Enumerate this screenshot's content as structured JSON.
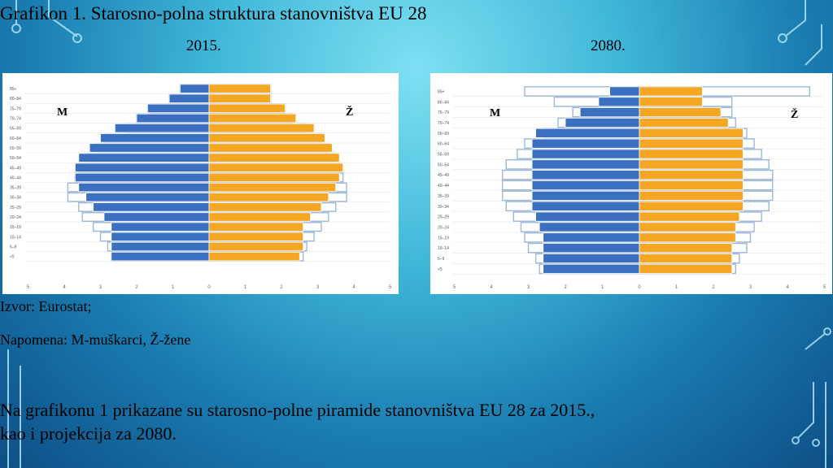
{
  "title": "Grafikon 1. Starosno-polna struktura stanovništva EU 28",
  "year_left": "2015.",
  "year_right": "2080.",
  "source": "Izvor: Eurostat;",
  "note": "Napomena: M-muškarci, Ž-žene",
  "body_line1": "Na grafikonu 1 prikazane su starosno-polne piramide stanovništva EU 28 za 2015.,",
  "body_line2": "kao i projekcija za 2080.",
  "colors": {
    "male": "#3b6fbf",
    "female": "#f5a623",
    "outline": "#9fb8d8"
  },
  "chart_data": [
    {
      "type": "bar",
      "subtype": "population-pyramid",
      "title": "2015.",
      "categories": [
        "<5",
        "5–9",
        "10–14",
        "15–19",
        "20–24",
        "25–29",
        "30–34",
        "35–39",
        "40–44",
        "45–49",
        "50–54",
        "55–59",
        "60–64",
        "65–69",
        "70–74",
        "75–79",
        "80–84",
        "85+"
      ],
      "series": [
        {
          "name": "M",
          "values": [
            2.7,
            2.7,
            2.7,
            2.7,
            2.9,
            3.2,
            3.4,
            3.6,
            3.7,
            3.7,
            3.6,
            3.3,
            3.0,
            2.6,
            2.0,
            1.7,
            1.1,
            0.8
          ]
        },
        {
          "name": "Ž",
          "values": [
            2.5,
            2.6,
            2.6,
            2.6,
            2.8,
            3.1,
            3.3,
            3.5,
            3.6,
            3.7,
            3.6,
            3.4,
            3.2,
            2.9,
            2.4,
            2.1,
            1.7,
            1.7
          ]
        }
      ],
      "outline_series": [
        {
          "name": "M",
          "values": [
            2.7,
            2.8,
            3.0,
            3.2,
            3.5,
            3.6,
            3.9,
            3.9,
            3.7,
            3.6,
            3.4,
            3.1,
            2.9,
            2.3,
            2.0,
            1.6,
            1.1,
            0.8
          ]
        },
        {
          "name": "Ž",
          "values": [
            2.6,
            2.7,
            2.9,
            3.1,
            3.3,
            3.5,
            3.8,
            3.8,
            3.7,
            3.6,
            3.5,
            3.3,
            3.1,
            2.7,
            2.3,
            2.1,
            1.7,
            1.7
          ]
        }
      ],
      "xlim": [
        -5,
        5
      ],
      "tick_labels": [
        "5",
        "4",
        "3",
        "2",
        "1",
        "0",
        "1",
        "2",
        "3",
        "4",
        "5"
      ],
      "male_label": "M",
      "female_label": "Ž"
    },
    {
      "type": "bar",
      "subtype": "population-pyramid",
      "title": "2080.",
      "categories": [
        "<5",
        "5–9",
        "10–14",
        "15–19",
        "20–24",
        "25–29",
        "30–34",
        "35–39",
        "40–44",
        "45–49",
        "50–54",
        "55–59",
        "60–64",
        "65–69",
        "70–74",
        "75–79",
        "80–84",
        "85+"
      ],
      "series": [
        {
          "name": "M",
          "values": [
            2.6,
            2.6,
            2.6,
            2.6,
            2.7,
            2.8,
            2.9,
            2.9,
            2.9,
            2.9,
            2.9,
            2.9,
            2.9,
            2.8,
            2.0,
            1.6,
            1.1,
            0.8
          ]
        },
        {
          "name": "Ž",
          "values": [
            2.5,
            2.5,
            2.5,
            2.6,
            2.6,
            2.7,
            2.8,
            2.8,
            2.8,
            2.8,
            2.8,
            2.8,
            2.8,
            2.8,
            2.4,
            2.2,
            1.7,
            1.7
          ]
        }
      ],
      "outline_series": [
        {
          "name": "M",
          "values": [
            2.7,
            2.8,
            3.0,
            3.1,
            3.2,
            3.4,
            3.6,
            3.7,
            3.7,
            3.7,
            3.6,
            3.3,
            3.1,
            2.6,
            2.2,
            1.8,
            2.3,
            3.1
          ]
        },
        {
          "name": "Ž",
          "values": [
            2.6,
            2.7,
            2.9,
            3.0,
            3.1,
            3.3,
            3.5,
            3.6,
            3.6,
            3.6,
            3.5,
            3.3,
            3.1,
            2.9,
            2.6,
            2.5,
            2.5,
            4.6
          ]
        }
      ],
      "xlim": [
        -5,
        5
      ],
      "tick_labels": [
        "5",
        "4",
        "3",
        "2",
        "1",
        "0",
        "1",
        "2",
        "3",
        "4",
        "5"
      ],
      "male_label": "M",
      "female_label": "Ž"
    }
  ]
}
